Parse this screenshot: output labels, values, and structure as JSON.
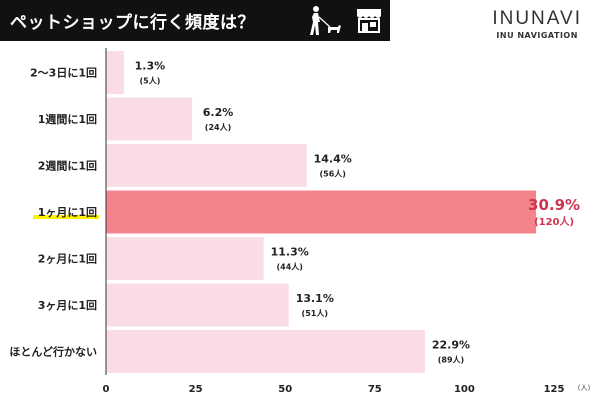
{
  "header": {
    "title": "ペットショップに行く頻度は？",
    "walker_icon": "dog-walker-icon",
    "shop_icon": "pet-shop-icon"
  },
  "brand": {
    "name": "INUNAVI",
    "subtitle": "INU NAVIGATION"
  },
  "colors": {
    "bar": "#fadde4",
    "highlight_bar": "#f4838c",
    "highlight_text": "#d1344f",
    "highlight_underline": "#fff200",
    "axis": "#333333"
  },
  "chart_data": {
    "type": "bar",
    "orientation": "horizontal",
    "title": "ペットショップに行く頻度は？",
    "categories": [
      "2〜3日に1回",
      "1週間に1回",
      "2週間に1回",
      "1ヶ月に1回",
      "2ヶ月に1回",
      "3ヶ月に1回",
      "ほとんど行かない"
    ],
    "values": [
      5,
      24,
      56,
      120,
      44,
      51,
      89
    ],
    "percent_labels": [
      "1.3%",
      "6.2%",
      "14.4%",
      "30.9%",
      "11.3%",
      "13.1%",
      "22.9%"
    ],
    "count_labels": [
      "(5人)",
      "(24人)",
      "(56人)",
      "(120人)",
      "(44人)",
      "(51人)",
      "(89人)"
    ],
    "highlight_index": 3,
    "xlim": [
      0,
      125
    ],
    "xticks": [
      0,
      25,
      50,
      75,
      100,
      125
    ],
    "xunit": "(人)",
    "grid": false
  }
}
